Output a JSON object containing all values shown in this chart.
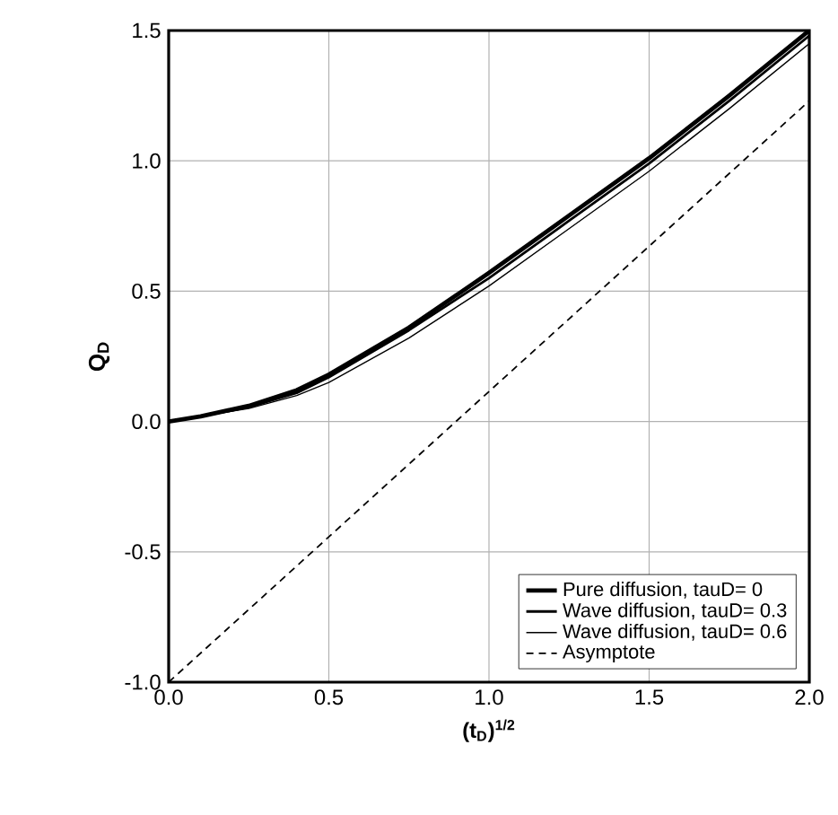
{
  "chart_data": {
    "type": "line",
    "xlabel": "(t$_{D}$)$^{1/2}$",
    "ylabel": "Q$_{D}$",
    "xlim": [
      0,
      2
    ],
    "ylim": [
      -1,
      1.5
    ],
    "xticks": [
      {
        "value": 0,
        "label": "0.0"
      },
      {
        "value": 0.5,
        "label": "0.5"
      },
      {
        "value": 1,
        "label": "1.0"
      },
      {
        "value": 1.5,
        "label": "1.5"
      },
      {
        "value": 2,
        "label": "2.0"
      }
    ],
    "yticks": [
      {
        "value": -1,
        "label": "-1.0"
      },
      {
        "value": -0.5,
        "label": "-0.5"
      },
      {
        "value": 0,
        "label": "0.0"
      },
      {
        "value": 0.5,
        "label": "0.5"
      },
      {
        "value": 1,
        "label": "1.0"
      },
      {
        "value": 1.5,
        "label": "1.5"
      }
    ],
    "grid": true,
    "legend": "bottom right",
    "marker": "none",
    "series": [
      {
        "name": "Pure diffusion, tauD= 0",
        "color": "#000000",
        "line_style": "solid",
        "x": [
          0,
          0.1,
          0.25,
          0.4,
          0.5,
          0.75,
          1,
          1.25,
          1.5,
          1.75,
          2
        ],
        "values": [
          0,
          0.02,
          0.06,
          0.12,
          0.18,
          0.36,
          0.57,
          0.79,
          1.01,
          1.25,
          1.5
        ]
      },
      {
        "name": "Wave diffusion, tauD= 0.3",
        "color": "#000000",
        "line_style": "solid",
        "x": [
          0,
          0.1,
          0.25,
          0.4,
          0.5,
          0.75,
          1,
          1.25,
          1.5,
          1.75,
          2
        ],
        "values": [
          0,
          0.02,
          0.055,
          0.11,
          0.17,
          0.35,
          0.55,
          0.77,
          0.99,
          1.23,
          1.48
        ]
      },
      {
        "name": "Wave diffusion, tauD= 0.6",
        "color": "#000000",
        "line_style": "solid",
        "x": [
          0,
          0.1,
          0.25,
          0.4,
          0.5,
          0.75,
          1,
          1.25,
          1.5,
          1.75,
          2
        ],
        "values": [
          0,
          0.02,
          0.05,
          0.1,
          0.15,
          0.32,
          0.52,
          0.74,
          0.96,
          1.2,
          1.45
        ]
      },
      {
        "name": "Asymptote",
        "color": "#000000",
        "line_style": "dashed",
        "x": [
          0,
          2
        ],
        "values": [
          -1,
          1.23
        ]
      }
    ]
  }
}
